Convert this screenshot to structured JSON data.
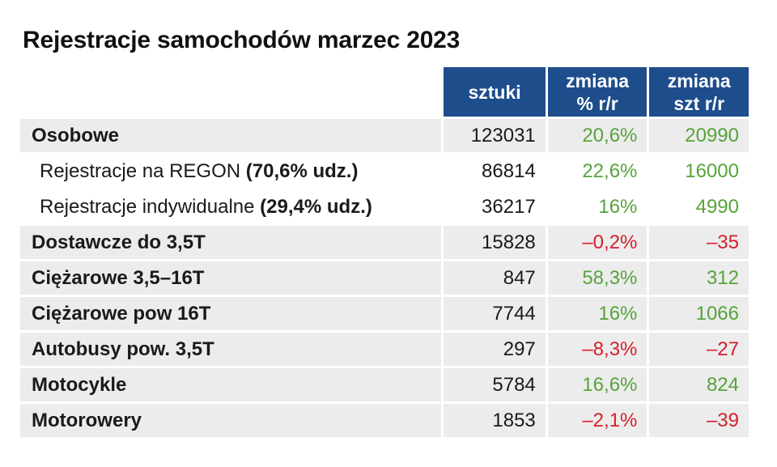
{
  "title": "Rejestracje samochodów marzec 2023",
  "headers": {
    "col1": "sztuki",
    "col2_line1": "zmiana",
    "col2_line2": "% r/r",
    "col3_line1": "zmiana",
    "col3_line2": "szt r/r"
  },
  "colors": {
    "header_bg": "#1e4d8c",
    "positive": "#57a33b",
    "negative": "#d5202c",
    "row_shade": "#ececec"
  },
  "rows": [
    {
      "label": "Osobowe",
      "value": "123031",
      "pct": "20,6%",
      "szt": "20990"
    },
    {
      "label": "Rejestracje na REGON ",
      "label_emph": "(70,6% udz.)",
      "value": "86814",
      "pct": "22,6%",
      "szt": "16000"
    },
    {
      "label": "Rejestracje indywidualne ",
      "label_emph": "(29,4% udz.)",
      "value": "36217",
      "pct": "16%",
      "szt": "4990"
    },
    {
      "label": "Dostawcze do 3,5T",
      "value": "15828",
      "pct": "–0,2%",
      "szt": "–35"
    },
    {
      "label": "Ciężarowe 3,5–16T",
      "value": "847",
      "pct": "58,3%",
      "szt": "312"
    },
    {
      "label": "Ciężarowe pow 16T",
      "value": "7744",
      "pct": "16%",
      "szt": "1066"
    },
    {
      "label": "Autobusy pow. 3,5T",
      "value": "297",
      "pct": "–8,3%",
      "szt": "–27"
    },
    {
      "label": "Motocykle",
      "value": "5784",
      "pct": "16,6%",
      "szt": "824"
    },
    {
      "label": "Motorowery",
      "value": "1853",
      "pct": "–2,1%",
      "szt": "–39"
    }
  ]
}
